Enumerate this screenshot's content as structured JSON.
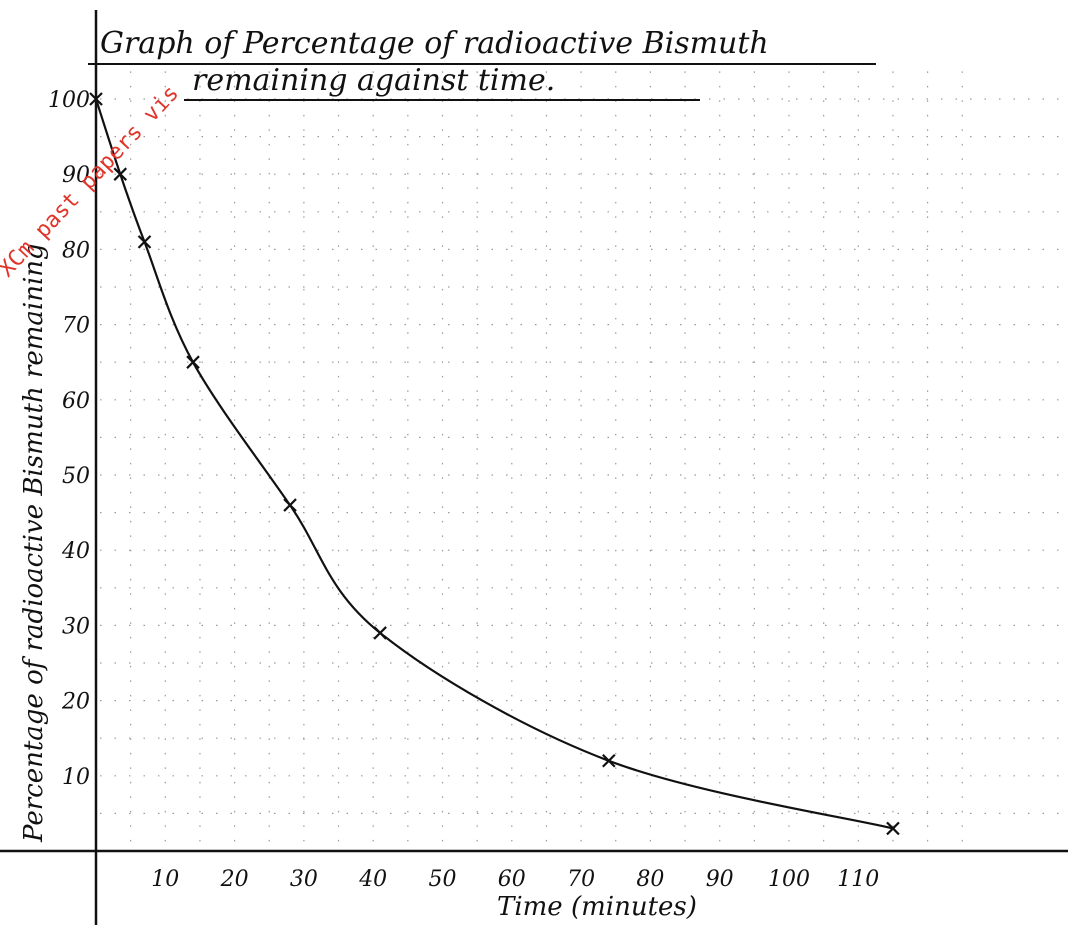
{
  "chart_data": {
    "type": "line",
    "title_lines": [
      "Graph of Percentage of radioactive Bismuth",
      "remaining against time."
    ],
    "xlabel": "Time (minutes)",
    "ylabel": "Percentage of radioactive Bismuth remaining",
    "x_ticks": [
      "10",
      "20",
      "30",
      "40",
      "50",
      "60",
      "70",
      "80",
      "90",
      "100",
      "110"
    ],
    "y_ticks": [
      "10",
      "20",
      "30",
      "40",
      "50",
      "60",
      "70",
      "80",
      "90",
      "100"
    ],
    "xlim": [
      0,
      125
    ],
    "ylim": [
      0,
      105
    ],
    "grid": "dotted",
    "series": [
      {
        "points": [
          {
            "x": 0,
            "y": 100
          },
          {
            "x": 3.5,
            "y": 90
          },
          {
            "x": 7,
            "y": 81
          },
          {
            "x": 14,
            "y": 65
          },
          {
            "x": 28,
            "y": 46
          },
          {
            "x": 41,
            "y": 29
          },
          {
            "x": 74,
            "y": 12
          },
          {
            "x": 115,
            "y": 3
          }
        ],
        "color": "#111111"
      }
    ],
    "markers": "x",
    "watermark": "XCm past papers vis"
  }
}
